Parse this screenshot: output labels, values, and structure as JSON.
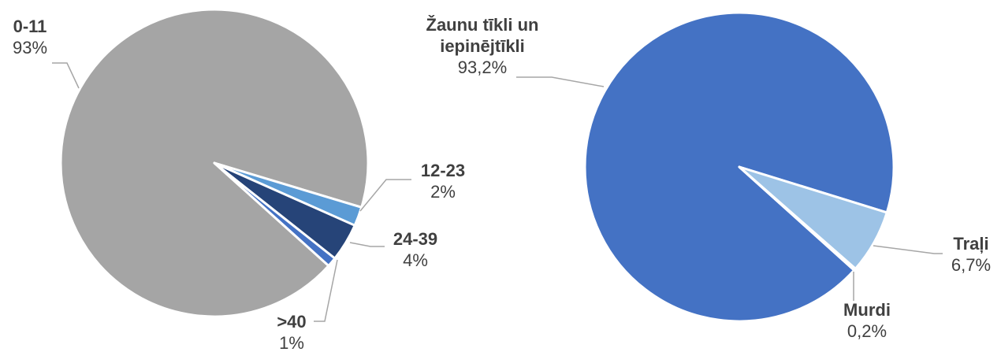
{
  "chart_data": [
    {
      "type": "pie",
      "categories": [
        "0-11",
        "12-23",
        "24-39",
        ">40"
      ],
      "values": [
        93,
        2,
        4,
        1
      ],
      "value_labels": [
        "93%",
        "2%",
        "4%",
        "1%"
      ],
      "colors": [
        "#a5a5a5",
        "#5b9bd5",
        "#264478",
        "#4472c4"
      ]
    },
    {
      "type": "pie",
      "categories": [
        "Žaunu tīkli un iepinējtīkli",
        "Traļi",
        "Murdi"
      ],
      "values": [
        93.2,
        6.7,
        0.2
      ],
      "value_labels": [
        "93,2%",
        "6,7%",
        "0,2%"
      ],
      "colors": [
        "#4472c4",
        "#9dc3e6",
        "#5b9bd5"
      ]
    }
  ]
}
